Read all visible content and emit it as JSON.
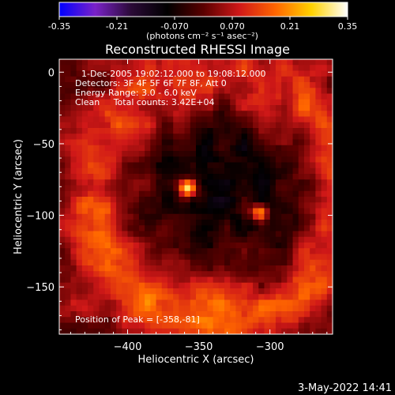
{
  "chart_data": {
    "type": "heatmap",
    "title": "Reconstructed RHESSI Image",
    "xlabel": "Heliocentric X (arcsec)",
    "ylabel": "Heliocentric Y (arcsec)",
    "xlim": [
      -448,
      -256
    ],
    "ylim": [
      -183,
      9
    ],
    "x_ticks": [
      -400,
      -350,
      -300
    ],
    "y_ticks": [
      0,
      -50,
      -100,
      -150
    ],
    "colorbar": {
      "min": -0.35,
      "max": 0.35,
      "ticks": [
        "-0.35",
        "-0.21",
        "-0.070",
        "0.070",
        "0.21",
        "0.35"
      ],
      "units": "(photons cm⁻² s⁻¹ asec⁻²)"
    },
    "annotations": {
      "time": "1-Dec-2005 19:02:12.000 to 19:08:12.000",
      "detectors": "Detectors: 3F 4F 5F 6F 7F 8F, Att 0",
      "energy": "Energy Range: 3.0 - 6.0 keV",
      "method": "Clean     Total counts: 3.42E+04",
      "peak": "Position of Peak = [-358,-81]"
    },
    "sources": [
      {
        "x": -358,
        "y": -81,
        "value": 0.35
      },
      {
        "x": -307,
        "y": -98,
        "value": 0.3
      }
    ],
    "colormap_stops": [
      "#0000ff",
      "#7a22c8",
      "#2a0a36",
      "#000000",
      "#5a0000",
      "#d01818",
      "#ff6600",
      "#ffd200",
      "#ffffff"
    ]
  },
  "footer": {
    "date": "3-May-2022 14:41"
  }
}
